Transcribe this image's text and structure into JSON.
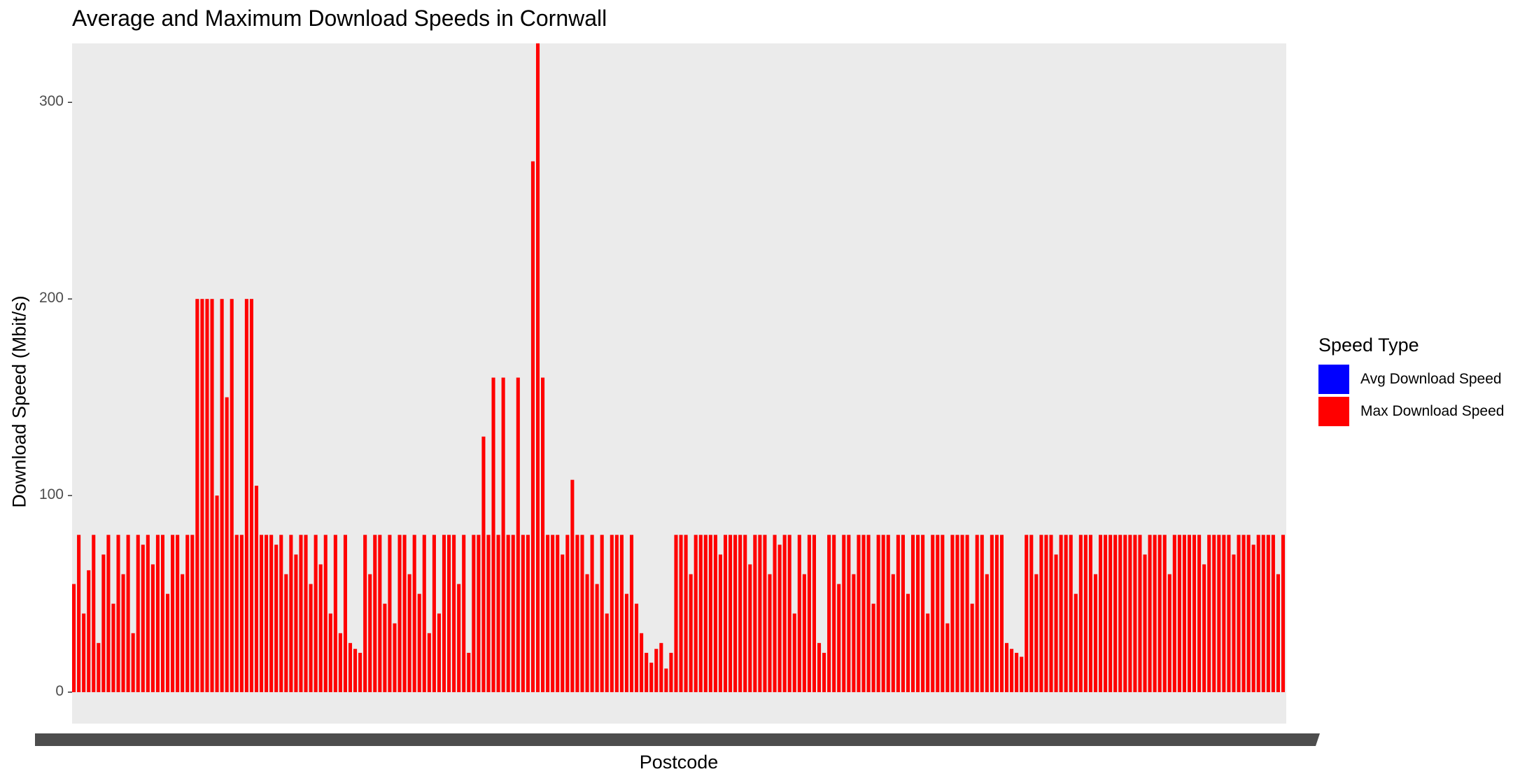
{
  "chart_data": {
    "type": "bar",
    "title": "Average and Maximum Download Speeds in Cornwall",
    "xlabel": "Postcode",
    "ylabel": "Download Speed (Mbit/s)",
    "ylim": [
      -16,
      330
    ],
    "yticks": [
      "0",
      "100",
      "200",
      "300"
    ],
    "legend": {
      "title": "Speed Type",
      "placement": "right",
      "items": [
        {
          "label": "Avg Download Speed",
          "color": "#0000ff"
        },
        {
          "label": "Max Download Speed",
          "color": "#ff0000"
        }
      ]
    },
    "grid": false,
    "panel_background": "#ebebeb",
    "series": [
      {
        "name": "Max Download Speed",
        "color": "#ff0000",
        "values": [
          55,
          80,
          40,
          62,
          80,
          25,
          70,
          80,
          45,
          80,
          60,
          80,
          30,
          80,
          75,
          80,
          65,
          80,
          80,
          50,
          80,
          80,
          60,
          80,
          80,
          200,
          200,
          200,
          200,
          100,
          200,
          150,
          200,
          80,
          80,
          200,
          200,
          105,
          80,
          80,
          80,
          75,
          80,
          60,
          80,
          70,
          80,
          80,
          55,
          80,
          65,
          80,
          40,
          80,
          30,
          80,
          25,
          22,
          20,
          80,
          60,
          80,
          80,
          45,
          80,
          35,
          80,
          80,
          60,
          80,
          50,
          80,
          30,
          80,
          40,
          80,
          80,
          80,
          55,
          80,
          20,
          80,
          80,
          130,
          80,
          160,
          80,
          160,
          80,
          80,
          160,
          80,
          80,
          270,
          330,
          160,
          80,
          80,
          80,
          70,
          80,
          108,
          80,
          80,
          60,
          80,
          55,
          80,
          40,
          80,
          80,
          80,
          50,
          80,
          45,
          30,
          20,
          15,
          22,
          25,
          12,
          20,
          80,
          80,
          80,
          60,
          80,
          80,
          80,
          80,
          80,
          70,
          80,
          80,
          80,
          80,
          80,
          65,
          80,
          80,
          80,
          60,
          80,
          75,
          80,
          80,
          40,
          80,
          60,
          80,
          80,
          25,
          20,
          80,
          80,
          55,
          80,
          80,
          60,
          80,
          80,
          80,
          45,
          80,
          80,
          80,
          60,
          80,
          80,
          50,
          80,
          80,
          80,
          40,
          80,
          80,
          80,
          35,
          80,
          80,
          80,
          80,
          45,
          80,
          80,
          60,
          80,
          80,
          80,
          25,
          22,
          20,
          18,
          80,
          80,
          60,
          80,
          80,
          80,
          70,
          80,
          80,
          80,
          50,
          80,
          80,
          80,
          60,
          80,
          80,
          80,
          80,
          80,
          80,
          80,
          80,
          80,
          70,
          80,
          80,
          80,
          80,
          60,
          80,
          80,
          80,
          80,
          80,
          80,
          65,
          80,
          80,
          80,
          80,
          80,
          70,
          80,
          80,
          80,
          75,
          80,
          80,
          80,
          80,
          60,
          80
        ]
      },
      {
        "name": "Avg Download Speed",
        "color": "#0000ff",
        "values": []
      }
    ]
  }
}
